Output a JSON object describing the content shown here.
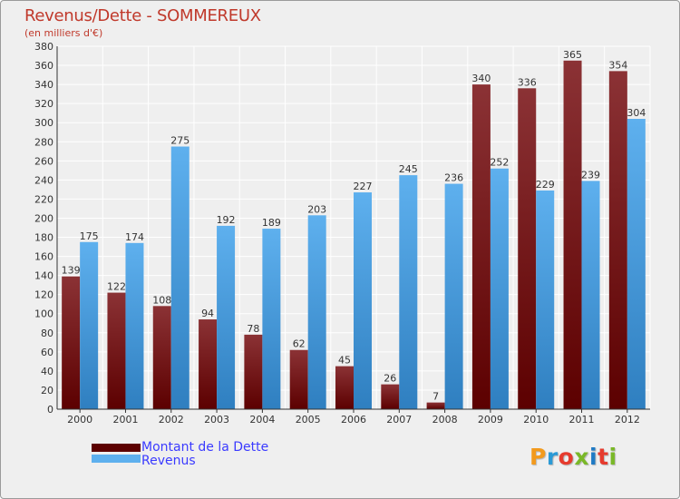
{
  "title": "Revenus/Dette - SOMMEREUX",
  "subtitle": "(en milliers d'€)",
  "colors": {
    "debt_top": "#8b3235",
    "debt_bottom": "#5c0000",
    "revenue_top": "#5eb0ee",
    "revenue_bottom": "#2f7fc0",
    "title": "#c0392b",
    "legend_text": "#3a3aff"
  },
  "logo_text": "Proxiti",
  "chart_data": {
    "type": "bar",
    "categories": [
      "2000",
      "2001",
      "2002",
      "2003",
      "2004",
      "2005",
      "2006",
      "2007",
      "2008",
      "2009",
      "2010",
      "2011",
      "2012"
    ],
    "series": [
      {
        "name": "Montant de la Dette",
        "values": [
          139,
          122,
          108,
          94,
          78,
          62,
          45,
          26,
          7,
          340,
          336,
          365,
          354
        ]
      },
      {
        "name": "Revenus",
        "values": [
          175,
          174,
          275,
          192,
          189,
          203,
          227,
          245,
          236,
          252,
          229,
          239,
          304
        ]
      }
    ],
    "ylim": [
      0,
      380
    ],
    "yticks": [
      0,
      20,
      40,
      60,
      80,
      100,
      120,
      140,
      160,
      180,
      200,
      220,
      240,
      260,
      280,
      300,
      320,
      340,
      360,
      380
    ],
    "grid": true,
    "legend_position": "bottom-left"
  }
}
